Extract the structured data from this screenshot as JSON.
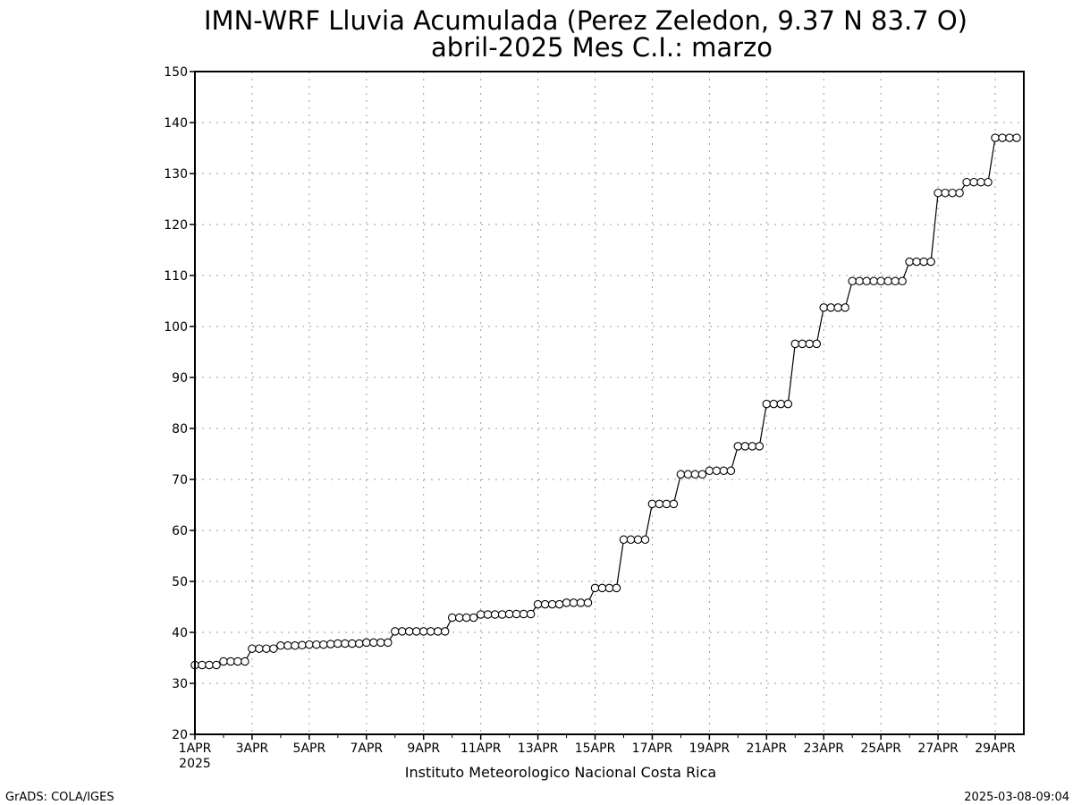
{
  "chart_data": {
    "type": "line",
    "title": "IMN-WRF  Lluvia Acumulada (Perez Zeledon, 9.37  N 83.7  O)",
    "subtitle": "abril-2025 Mes C.I.: marzo",
    "xlabel": "",
    "ylabel": "",
    "ylim": [
      20,
      150
    ],
    "yticks": [
      20,
      30,
      40,
      50,
      60,
      70,
      80,
      90,
      100,
      110,
      120,
      130,
      140,
      150
    ],
    "xlim": [
      1,
      30
    ],
    "xticks": [
      {
        "day": 1,
        "label": "1APR"
      },
      {
        "day": 3,
        "label": "3APR"
      },
      {
        "day": 5,
        "label": "5APR"
      },
      {
        "day": 7,
        "label": "7APR"
      },
      {
        "day": 9,
        "label": "9APR"
      },
      {
        "day": 11,
        "label": "11APR"
      },
      {
        "day": 13,
        "label": "13APR"
      },
      {
        "day": 15,
        "label": "15APR"
      },
      {
        "day": 17,
        "label": "17APR"
      },
      {
        "day": 19,
        "label": "19APR"
      },
      {
        "day": 21,
        "label": "21APR"
      },
      {
        "day": 23,
        "label": "23APR"
      },
      {
        "day": 25,
        "label": "25APR"
      },
      {
        "day": 27,
        "label": "27APR"
      },
      {
        "day": 29,
        "label": "29APR"
      }
    ],
    "year_label": "2025",
    "grid": true,
    "marker": "open-circle",
    "line_color": "#000000",
    "x_step_days": 0.25,
    "y": [
      33.6,
      33.6,
      33.6,
      33.6,
      34.3,
      34.3,
      34.3,
      34.3,
      36.8,
      36.8,
      36.8,
      36.8,
      37.4,
      37.4,
      37.4,
      37.5,
      37.6,
      37.6,
      37.6,
      37.7,
      37.8,
      37.8,
      37.8,
      37.8,
      38.0,
      38.0,
      38.0,
      38.0,
      40.2,
      40.2,
      40.2,
      40.2,
      40.2,
      40.2,
      40.2,
      40.2,
      42.9,
      42.9,
      42.9,
      42.9,
      43.5,
      43.5,
      43.5,
      43.5,
      43.6,
      43.6,
      43.6,
      43.6,
      45.5,
      45.5,
      45.5,
      45.5,
      45.8,
      45.8,
      45.8,
      45.8,
      48.7,
      48.7,
      48.7,
      48.7,
      58.2,
      58.2,
      58.2,
      58.2,
      65.2,
      65.2,
      65.2,
      65.2,
      71.0,
      71.0,
      71.0,
      71.0,
      71.7,
      71.7,
      71.7,
      71.7,
      76.5,
      76.5,
      76.5,
      76.5,
      84.8,
      84.8,
      84.8,
      84.8,
      96.6,
      96.6,
      96.6,
      96.6,
      103.7,
      103.7,
      103.7,
      103.7,
      108.9,
      108.9,
      108.9,
      108.9,
      108.9,
      108.9,
      108.9,
      108.9,
      112.7,
      112.7,
      112.7,
      112.7,
      126.2,
      126.2,
      126.2,
      126.2,
      128.3,
      128.3,
      128.3,
      128.3,
      137.0,
      137.0,
      137.0,
      137.0
    ]
  },
  "footer": {
    "institution": "Instituto Meteorologico Nacional Costa Rica",
    "software": "GrADS: COLA/IGES",
    "timestamp": "2025-03-08-09:04"
  }
}
